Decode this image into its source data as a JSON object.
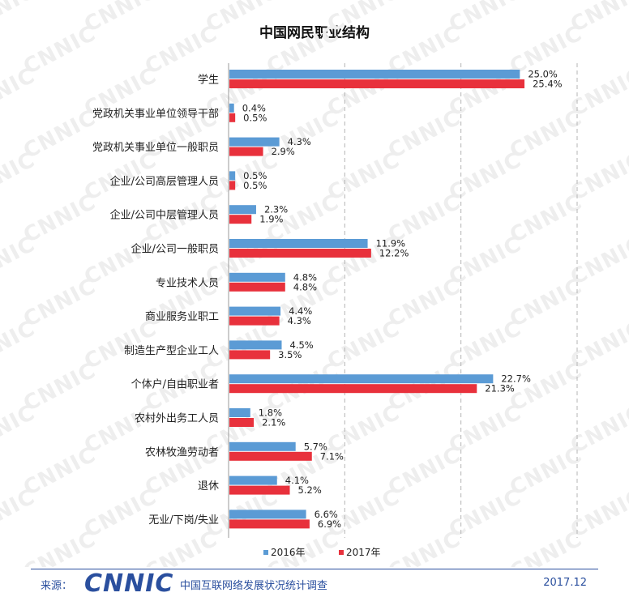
{
  "chart_data": {
    "type": "bar",
    "orientation": "horizontal",
    "title": "中国网民职业结构",
    "categories": [
      "学生",
      "党政机关事业单位领导干部",
      "党政机关事业单位一般职员",
      "企业/公司高层管理人员",
      "企业/公司中层管理人员",
      "企业/公司一般职员",
      "专业技术人员",
      "商业服务业职工",
      "制造生产型企业工人",
      "个体户/自由职业者",
      "农村外出务工人员",
      "农林牧渔劳动者",
      "退休",
      "无业/下岗/失业"
    ],
    "series": [
      {
        "name": "2016年",
        "color": "#5b9bd5",
        "values": [
          25.0,
          0.4,
          4.3,
          0.5,
          2.3,
          11.9,
          4.8,
          4.4,
          4.5,
          22.7,
          1.8,
          5.7,
          4.1,
          6.6
        ],
        "labels": [
          "25.0%",
          "0.4%",
          "4.3%",
          "0.5%",
          "2.3%",
          "11.9%",
          "4.8%",
          "4.4%",
          "4.5%",
          "22.7%",
          "1.8%",
          "5.7%",
          "4.1%",
          "6.6%"
        ]
      },
      {
        "name": "2017年",
        "color": "#e8313c",
        "values": [
          25.4,
          0.5,
          2.9,
          0.5,
          1.9,
          12.2,
          4.8,
          4.3,
          3.5,
          21.3,
          2.1,
          7.1,
          5.2,
          6.9
        ],
        "labels": [
          "25.4%",
          "0.5%",
          "2.9%",
          "0.5%",
          "1.9%",
          "12.2%",
          "4.8%",
          "4.3%",
          "3.5%",
          "21.3%",
          "2.1%",
          "7.1%",
          "5.2%",
          "6.9%"
        ]
      }
    ],
    "xlim": [
      0,
      30
    ],
    "grid": true,
    "legend": "bottom-center"
  },
  "watermark": "CNNIC",
  "footer": {
    "source_label": "来源：",
    "logo": "CNNIC",
    "org_name": "中国互联网络发展状况统计调查",
    "date": "2017.12"
  }
}
